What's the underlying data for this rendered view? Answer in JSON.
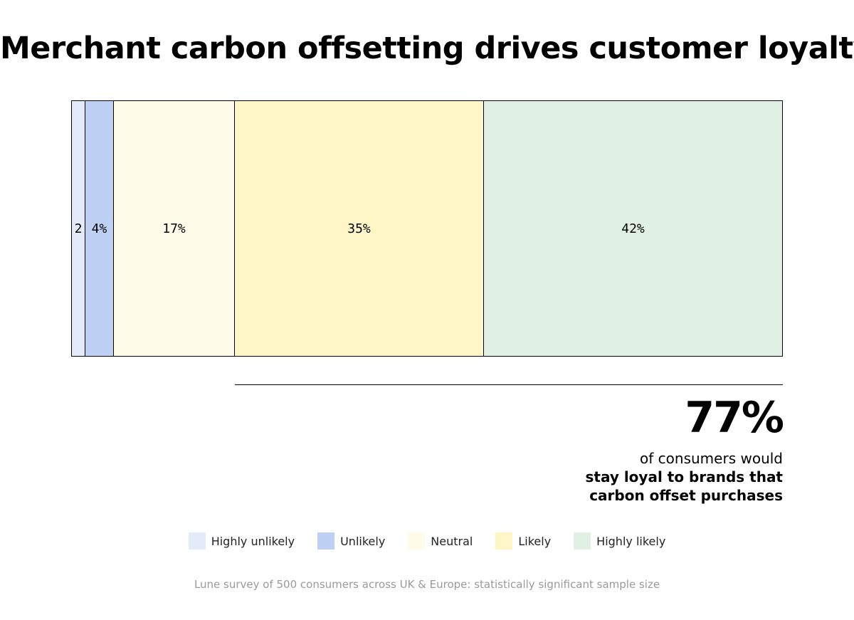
{
  "title": "Merchant carbon offsetting drives customer loyalty",
  "chart_data": {
    "type": "bar",
    "orientation": "horizontal-stacked-100",
    "categories": [
      "Highly unlikely",
      "Unlikely",
      "Neutral",
      "Likely",
      "Highly likely"
    ],
    "values": [
      2,
      4,
      17,
      35,
      42
    ],
    "segment_labels": [
      "2",
      "4%",
      "17%",
      "35%",
      "42%"
    ],
    "colors": [
      "#e3eaf9",
      "#bed0f3",
      "#fffbe9",
      "#fff6c7",
      "#e0f0e4"
    ],
    "legend_position": "bottom"
  },
  "highlight": {
    "value": "77%",
    "line1": "of consumers would",
    "line2": "stay loyal to brands that",
    "line3": "carbon offset purchases"
  },
  "legend": [
    {
      "label": "Highly unlikely",
      "color": "#e3eaf9"
    },
    {
      "label": "Unlikely",
      "color": "#bed0f3"
    },
    {
      "label": "Neutral",
      "color": "#fffbe9"
    },
    {
      "label": "Likely",
      "color": "#fff6c7"
    },
    {
      "label": "Highly likely",
      "color": "#e0f0e4"
    }
  ],
  "footnote": "Lune survey of 500 consumers across UK & Europe: statistically significant sample size"
}
